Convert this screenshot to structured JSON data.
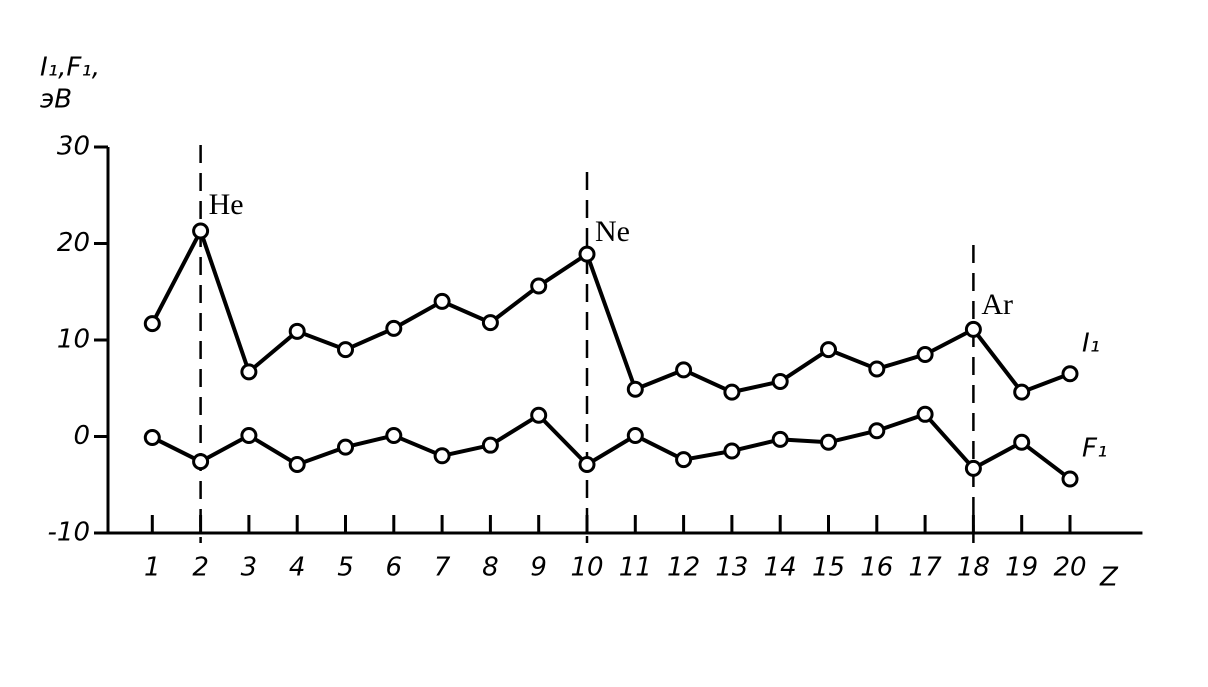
{
  "chart_data": {
    "type": "line",
    "ylabel": [
      "I₁,F₁,",
      "эВ"
    ],
    "xlabel": "Z",
    "x": [
      1,
      2,
      3,
      4,
      5,
      6,
      7,
      8,
      9,
      10,
      11,
      12,
      13,
      14,
      15,
      16,
      17,
      18,
      19,
      20
    ],
    "xlim": [
      0,
      21.5
    ],
    "xticks": [
      1,
      2,
      3,
      4,
      5,
      6,
      7,
      8,
      9,
      10,
      11,
      12,
      13,
      14,
      15,
      16,
      17,
      18,
      19,
      20
    ],
    "ylim": [
      -10,
      30
    ],
    "yticks": [
      -10,
      0,
      10,
      20,
      30
    ],
    "series": [
      {
        "name": "I₁",
        "color": "#000000",
        "values": [
          11.7,
          21.3,
          6.7,
          10.9,
          9.0,
          11.2,
          14.0,
          11.8,
          15.6,
          18.9,
          4.9,
          6.9,
          4.6,
          5.7,
          9.0,
          7.0,
          8.5,
          11.1,
          4.6,
          6.5
        ]
      },
      {
        "name": "F₁",
        "color": "#000000",
        "values": [
          -0.1,
          -2.6,
          0.1,
          -2.9,
          -1.1,
          0.1,
          -2.0,
          -0.9,
          2.2,
          -2.9,
          0.1,
          -2.4,
          -1.5,
          -0.3,
          -0.6,
          0.6,
          2.3,
          -3.3,
          -0.6,
          -4.4
        ]
      }
    ],
    "annotations": [
      {
        "x": 2,
        "label": "He"
      },
      {
        "x": 10,
        "label": "Ne"
      },
      {
        "x": 18,
        "label": "Ar"
      }
    ]
  }
}
